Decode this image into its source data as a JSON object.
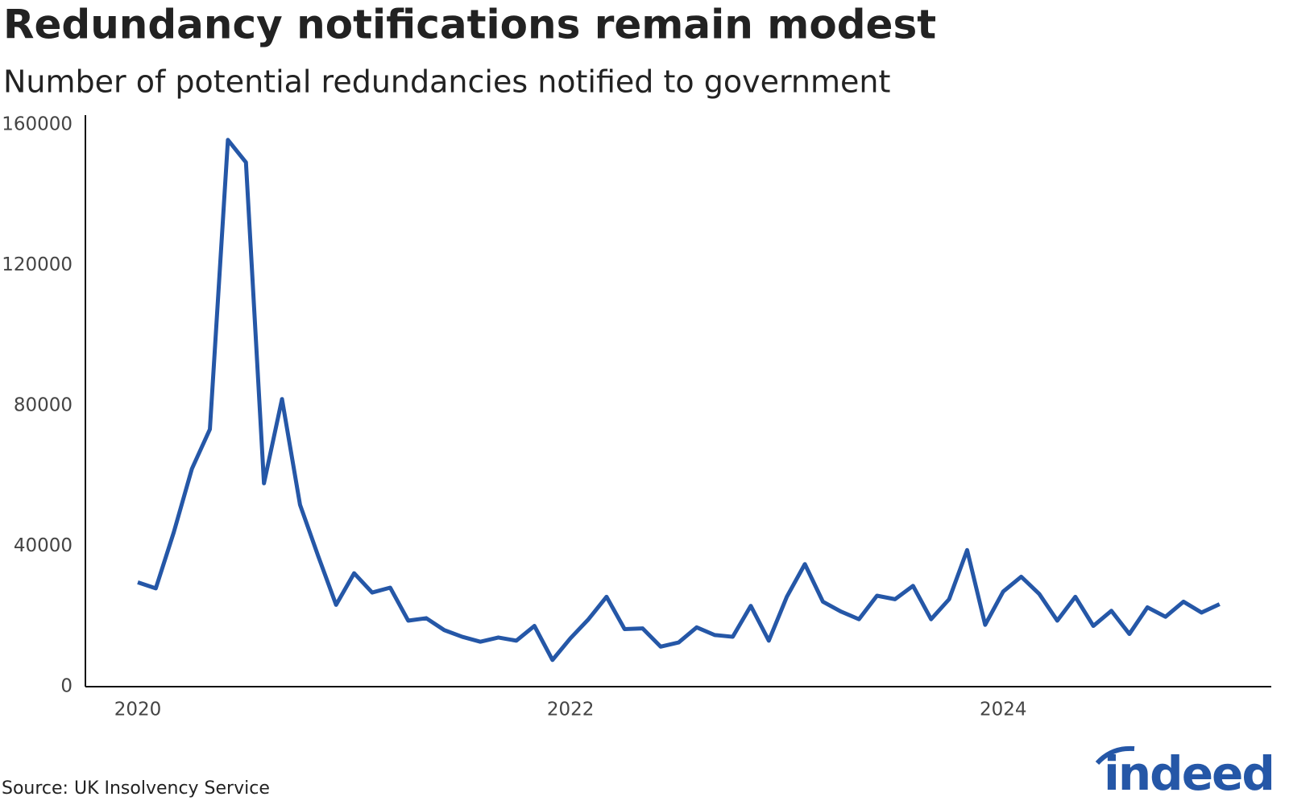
{
  "chart_data": {
    "type": "line",
    "title": "Redundancy notifications remain modest",
    "subtitle": "Number of potential redundancies notified to government",
    "source": "Source: UK Insolvency Service",
    "logo": "indeed",
    "categories": [
      "2020",
      null,
      null,
      null,
      null,
      null,
      null,
      null,
      null,
      null,
      null,
      null,
      null,
      null,
      null,
      null,
      null,
      null,
      null,
      null,
      null,
      null,
      null,
      null,
      "2022",
      null,
      null,
      null,
      null,
      null,
      null,
      null,
      null,
      null,
      null,
      null,
      null,
      null,
      null,
      null,
      null,
      null,
      null,
      null,
      null,
      null,
      null,
      null,
      "2024",
      null,
      null,
      null,
      null,
      null,
      null,
      null,
      null,
      null,
      null,
      null,
      null
    ],
    "series": [
      {
        "name": "Potential redundancies",
        "color": "#2557a7",
        "values": [
          29700,
          28000,
          44000,
          62000,
          73300,
          155700,
          149300,
          57900,
          81900,
          51800,
          37300,
          23300,
          32300,
          26800,
          28200,
          18800,
          19500,
          16100,
          14200,
          12800,
          14000,
          13100,
          17300,
          7600,
          13800,
          19200,
          25600,
          16400,
          16600,
          11400,
          12600,
          16900,
          14700,
          14200,
          23000,
          13100,
          25600,
          34900,
          24200,
          21400,
          19200,
          25900,
          24900,
          28700,
          19200,
          24900,
          38900,
          17600,
          27100,
          31300,
          26400,
          18800,
          25600,
          17300,
          21600,
          15000,
          22600,
          19900,
          24200,
          21100,
          23500
        ]
      }
    ],
    "ylim": [
      0,
      160000
    ],
    "yticks": [
      0,
      40000,
      80000,
      120000,
      160000
    ],
    "grid": false
  }
}
